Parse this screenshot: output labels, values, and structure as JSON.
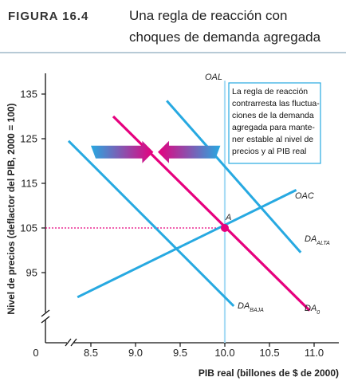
{
  "header": {
    "figure_label": "FIGURA 16.4",
    "title_line1": "Una regla de reacción con",
    "title_line2": "choques de demanda agregada"
  },
  "colors": {
    "blue": "#27a9e1",
    "magenta": "#e6007e",
    "blue_light": "#a9dcf5",
    "header_rule": "#9fb9c9"
  },
  "chart_data": {
    "type": "line",
    "xlabel": "PIB real (billones de $ de 2000)",
    "ylabel": "Nivel de precios (deflactor del PIB, 2000 = 100)",
    "x_ticks": [
      "8.5",
      "9.0",
      "9.5",
      "10.0",
      "10.5",
      "11.0"
    ],
    "y_ticks": [
      "95",
      "105",
      "115",
      "125",
      "135"
    ],
    "origin_label": "0",
    "xlim": [
      8.2,
      11.2
    ],
    "ylim": [
      85,
      138
    ],
    "series": [
      {
        "key": "oal",
        "name": "OAL",
        "color": "#a9dcf5",
        "points": [
          [
            10.0,
            85
          ],
          [
            10.0,
            138
          ]
        ]
      },
      {
        "key": "oac",
        "name": "OAC",
        "color": "#27a9e1",
        "points": [
          [
            8.35,
            89.5
          ],
          [
            10.8,
            113.5
          ]
        ]
      },
      {
        "key": "da0",
        "name": "DA",
        "sub": "0",
        "color": "#e6007e",
        "points": [
          [
            8.75,
            130
          ],
          [
            10.95,
            86.5
          ]
        ]
      },
      {
        "key": "da_alta",
        "name": "DA",
        "sub": "ALTA",
        "color": "#27a9e1",
        "points": [
          [
            9.35,
            133.5
          ],
          [
            10.85,
            99.5
          ]
        ]
      },
      {
        "key": "da_baja",
        "name": "DA",
        "sub": "BAJA",
        "color": "#27a9e1",
        "points": [
          [
            8.25,
            124.5
          ],
          [
            10.1,
            87.5
          ]
        ]
      }
    ],
    "equilibrium": {
      "label": "A",
      "x": 10.0,
      "y": 105
    },
    "arrows": [
      {
        "direction": "right",
        "from_x": 8.5,
        "to_x": 9.2,
        "y": 122
      },
      {
        "direction": "left",
        "from_x": 9.95,
        "to_x": 9.25,
        "y": 122
      }
    ],
    "annotation_lines": [
      "La regla de reacción",
      "contrarresta las fluctua-",
      "ciones de la demanda",
      "agregada para mante-",
      "ner estable al nivel de",
      "precios y al PIB real"
    ]
  }
}
